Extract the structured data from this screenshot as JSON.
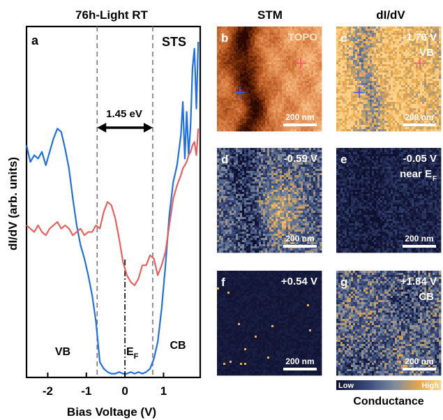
{
  "left_panel": {
    "title": "76h-Light RT",
    "panel_letter": "a",
    "tag": "STS",
    "ylabel": "dI/dV (arb. units)",
    "xlabel": "Bias Voltage (V)",
    "gap_label": "1.45 eV",
    "vb_label": "VB",
    "ef_label": "E",
    "ef_sub": "F",
    "cb_label": "CB"
  },
  "chart_data": {
    "type": "line",
    "title": "76h-Light RT",
    "xlabel": "Bias Voltage (V)",
    "ylabel": "dI/dV (arb. units)",
    "xlim": [
      -2.55,
      1.95
    ],
    "ylim": [
      0,
      1
    ],
    "xticks": [
      -2,
      -1,
      0,
      1
    ],
    "xtick_labels": [
      "-2",
      "-1",
      "0",
      "1"
    ],
    "gap_lines": [
      -0.72,
      0.72
    ],
    "ef_line": 0,
    "gap_ev": 1.45,
    "series": [
      {
        "color": "#1f6fe8",
        "x": [
          -2.55,
          -2.45,
          -2.35,
          -2.25,
          -2.15,
          -2.05,
          -1.95,
          -1.85,
          -1.75,
          -1.65,
          -1.55,
          -1.45,
          -1.35,
          -1.25,
          -1.15,
          -1.05,
          -0.95,
          -0.85,
          -0.75,
          -0.65,
          -0.55,
          -0.45,
          -0.35,
          -0.25,
          -0.15,
          -0.05,
          0.05,
          0.15,
          0.25,
          0.35,
          0.45,
          0.55,
          0.65,
          0.75,
          0.85,
          0.95,
          1.05,
          1.15,
          1.25,
          1.35,
          1.45,
          1.5,
          1.55,
          1.6,
          1.65,
          1.7,
          1.75,
          1.8,
          1.85,
          1.9
        ],
        "y": [
          0.69,
          0.64,
          0.66,
          0.65,
          0.67,
          0.63,
          0.67,
          0.71,
          0.74,
          0.73,
          0.68,
          0.62,
          0.53,
          0.45,
          0.39,
          0.35,
          0.3,
          0.24,
          0.16,
          0.04,
          0.02,
          0.01,
          0.005,
          0.005,
          0.01,
          0.005,
          0.005,
          0.01,
          0.005,
          0.01,
          0.005,
          0.01,
          0.02,
          0.05,
          0.1,
          0.2,
          0.33,
          0.48,
          0.58,
          0.63,
          0.72,
          0.82,
          0.65,
          0.79,
          0.66,
          0.75,
          0.92,
          0.98,
          0.8,
          1.0
        ]
      },
      {
        "color": "#e8605e",
        "x": [
          -2.55,
          -2.45,
          -2.35,
          -2.25,
          -2.15,
          -2.05,
          -1.95,
          -1.85,
          -1.75,
          -1.65,
          -1.55,
          -1.45,
          -1.35,
          -1.25,
          -1.15,
          -1.05,
          -0.95,
          -0.85,
          -0.75,
          -0.65,
          -0.55,
          -0.45,
          -0.35,
          -0.25,
          -0.15,
          -0.05,
          0.05,
          0.15,
          0.25,
          0.35,
          0.45,
          0.55,
          0.65,
          0.75,
          0.85,
          0.95,
          1.05,
          1.15,
          1.25,
          1.35,
          1.45,
          1.5,
          1.55,
          1.6,
          1.65,
          1.7,
          1.75,
          1.8,
          1.85,
          1.9
        ],
        "y": [
          0.45,
          0.44,
          0.43,
          0.45,
          0.43,
          0.42,
          0.44,
          0.45,
          0.46,
          0.44,
          0.45,
          0.44,
          0.42,
          0.43,
          0.44,
          0.42,
          0.43,
          0.43,
          0.45,
          0.44,
          0.49,
          0.52,
          0.51,
          0.47,
          0.41,
          0.34,
          0.3,
          0.28,
          0.27,
          0.29,
          0.33,
          0.33,
          0.36,
          0.35,
          0.3,
          0.33,
          0.37,
          0.45,
          0.53,
          0.57,
          0.6,
          0.62,
          0.63,
          0.64,
          0.66,
          0.67,
          0.69,
          0.7,
          0.66,
          0.74
        ]
      }
    ],
    "markers": {
      "blue": {
        "map_x": 0.22,
        "map_y": 0.63
      },
      "red": {
        "map_x": 0.8,
        "map_y": 0.35
      }
    }
  },
  "columns": {
    "stm": "STM",
    "didv": "dI/dV"
  },
  "maps": [
    {
      "letter": "b",
      "label_1": "TOPO",
      "label_2": "",
      "label_sub": "",
      "label_1_color": "#f5e6c8",
      "scale": "200 nm",
      "kind": "topo"
    },
    {
      "letter": "c",
      "label_1": "-1.76 V",
      "label_2": "VB",
      "label_sub": "",
      "label_1_color": "#ffffff",
      "scale": "200 nm",
      "kind": "vb",
      "density": 0.75
    },
    {
      "letter": "d",
      "label_1": "-0.59 V",
      "label_2": "",
      "label_sub": "",
      "label_1_color": "#ffffff",
      "scale": "200 nm",
      "kind": "d",
      "density": 0.42
    },
    {
      "letter": "e",
      "label_1": "-0.05 V",
      "label_2": "near E",
      "label_sub": "F",
      "label_1_color": "#ffffff",
      "scale": "200 nm",
      "kind": "e",
      "density": 0.08
    },
    {
      "letter": "f",
      "label_1": "+0.54 V",
      "label_2": "",
      "label_sub": "",
      "label_1_color": "#ffffff",
      "scale": "200 nm",
      "kind": "f",
      "density": 0.01
    },
    {
      "letter": "g",
      "label_1": "+1.84 V",
      "label_2": "CB",
      "label_sub": "",
      "label_1_color": "#ffffff",
      "scale": "200 nm",
      "kind": "cb",
      "density": 0.48
    }
  ],
  "colorbar": {
    "low": "Low",
    "high": "High",
    "label": "Conductance",
    "colors": [
      "#0d0f2e",
      "#3a4a7a",
      "#7a8aa0",
      "#e7a84a",
      "#ffd18a"
    ]
  },
  "colors": {
    "blue": "#1f6fe8",
    "red": "#e8605e",
    "marker_blue": "#3b5bff",
    "marker_red": "#ff4f6a"
  }
}
